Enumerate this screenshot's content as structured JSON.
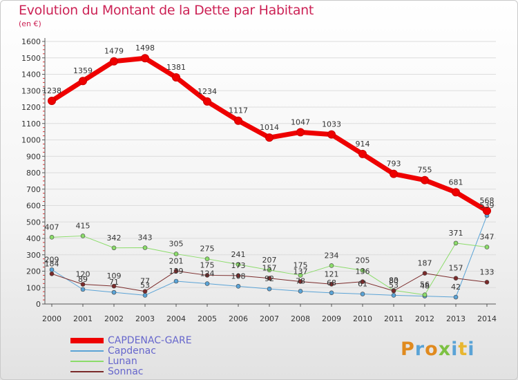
{
  "title": "Evolution du Montant de la Dette par Habitant",
  "unit_label": "(en €)",
  "logo": {
    "text": "Proxiti",
    "colors": [
      "#e08a1e",
      "#5aa3d6",
      "#e08a1e",
      "#7cc142",
      "#5aa3d6",
      "#e8b630",
      "#5aa3d6"
    ]
  },
  "chart_data": {
    "type": "line",
    "x": [
      "2000",
      "2001",
      "2002",
      "2003",
      "2004",
      "2005",
      "2006",
      "2007",
      "2008",
      "2009",
      "2010",
      "2011",
      "2012",
      "2013",
      "2014"
    ],
    "ylim": [
      0,
      1600
    ],
    "yticks": [
      0,
      100,
      200,
      300,
      400,
      500,
      600,
      700,
      800,
      900,
      1000,
      1100,
      1200,
      1300,
      1400,
      1500,
      1600
    ],
    "grid": true,
    "legend_position": "bottom-left",
    "series": [
      {
        "name": "CAPDENAC-GARE",
        "color": "#ee0000",
        "width": 7,
        "values": [
          1238,
          1359,
          1479,
          1498,
          1381,
          1234,
          1117,
          1014,
          1047,
          1033,
          914,
          793,
          755,
          681,
          568
        ],
        "labels": [
          "1238",
          "1359",
          "1479",
          "1498",
          "1381",
          "1234",
          "1117",
          "1014",
          "1047",
          "1033",
          "914",
          "793",
          "755",
          "681",
          "568"
        ]
      },
      {
        "name": "Capdenac",
        "color": "#5aa3d6",
        "width": 1,
        "values": [
          209,
          89,
          71,
          53,
          139,
          124,
          108,
          92,
          78,
          68,
          61,
          53,
          48,
          42,
          539
        ],
        "labels": [
          "209",
          "89",
          "71",
          "53",
          "139",
          "124",
          "108",
          "92",
          "78",
          "68",
          "61",
          "53",
          "48",
          "42",
          "539"
        ]
      },
      {
        "name": "Lunan",
        "color": "#8bdc6a",
        "width": 1,
        "values": [
          407,
          415,
          342,
          343,
          305,
          275,
          241,
          207,
          175,
          234,
          205,
          83,
          56,
          371,
          347
        ],
        "labels": [
          "407",
          "415",
          "342",
          "343",
          "305",
          "275",
          "241",
          "207",
          "175",
          "234",
          "205",
          "83",
          "56",
          "371",
          "347"
        ]
      },
      {
        "name": "Sonnac",
        "color": "#7a2a2a",
        "width": 1,
        "values": [
          184,
          120,
          109,
          77,
          201,
          175,
          173,
          157,
          137,
          121,
          136,
          80,
          187,
          157,
          133
        ],
        "labels": [
          "184",
          "120",
          "109",
          "77",
          "201",
          "175",
          "173",
          "157",
          "137",
          "121",
          "136",
          "80",
          "187",
          "157",
          "133"
        ]
      }
    ]
  }
}
